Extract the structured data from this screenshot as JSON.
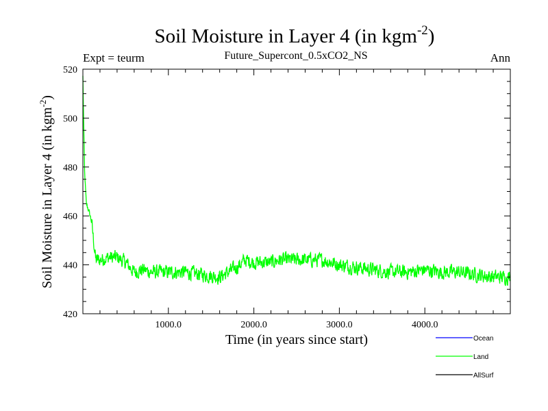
{
  "chart_data": {
    "type": "line",
    "title": "Soil Moisture in Layer 4 (in kgm",
    "title_sup": "-2",
    "title_close": ")",
    "subtitle": "Future_Supercont_0.5xCO2_NS",
    "left_label": "Expt = teurm",
    "right_label": "Ann",
    "xlabel": "Time (in years since start)",
    "ylabel": "Soil Moisture in Layer 4 (in kgm",
    "ylabel_sup": "-2",
    "ylabel_close": ")",
    "xlim": [
      0,
      5000
    ],
    "ylim": [
      420,
      520
    ],
    "xticks": [
      1000,
      2000,
      3000,
      4000
    ],
    "xtick_labels": [
      "1000.0",
      "2000.0",
      "3000.0",
      "4000.0"
    ],
    "yticks": [
      420,
      440,
      460,
      480,
      500,
      520
    ],
    "ytick_labels": [
      "420",
      "440",
      "460",
      "480",
      "500",
      "520"
    ],
    "grid": false,
    "legend_position": "bottom-right",
    "series": [
      {
        "name": "Ocean",
        "color": "#0000ff",
        "values": []
      },
      {
        "name": "Land",
        "color": "#00ff00",
        "anchors": {
          "x": [
            0,
            8,
            20,
            40,
            70,
            100,
            150,
            200,
            300,
            400,
            500,
            600,
            700,
            800,
            900,
            1000,
            1200,
            1400,
            1600,
            1700,
            1800,
            1900,
            2000,
            2200,
            2300,
            2400,
            2600,
            2800,
            2900,
            3000,
            3200,
            3400,
            3600,
            3800,
            4000,
            4200,
            4400,
            4600,
            4800,
            5000
          ],
          "y": [
            517,
            500,
            478,
            465,
            462,
            458,
            442,
            442,
            443,
            443,
            441,
            437,
            438,
            437,
            437,
            437,
            437,
            436,
            435,
            437,
            439,
            442,
            441,
            441,
            442,
            442,
            442,
            442,
            441,
            440,
            439,
            438,
            437,
            437,
            438,
            437,
            437,
            436,
            435,
            435
          ]
        },
        "noise_amplitude": 4
      },
      {
        "name": "AllSurf",
        "color": "#000000",
        "values": []
      }
    ]
  }
}
